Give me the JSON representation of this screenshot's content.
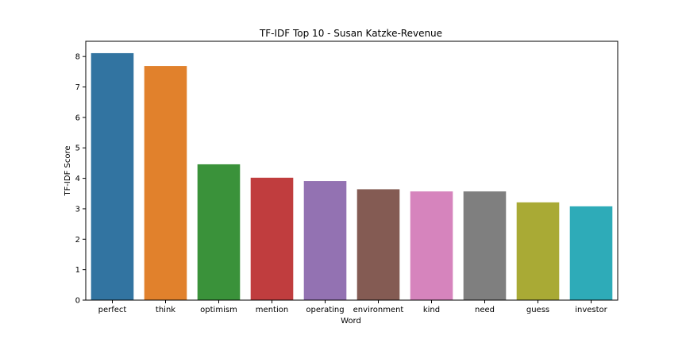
{
  "chart_data": {
    "type": "bar",
    "title": "TF-IDF Top 10 - Susan Katzke-Revenue",
    "xlabel": "Word",
    "ylabel": "TF-IDF Score",
    "categories": [
      "perfect",
      "think",
      "optimism",
      "mention",
      "operating",
      "environment",
      "kind",
      "need",
      "guess",
      "investor"
    ],
    "values": [
      8.11,
      7.69,
      4.46,
      4.02,
      3.91,
      3.64,
      3.57,
      3.57,
      3.21,
      3.08
    ],
    "colors": [
      "#3274a1",
      "#e1812c",
      "#3a923a",
      "#c03d3e",
      "#9372b2",
      "#845b53",
      "#d684bd",
      "#7f7f7f",
      "#a9aa35",
      "#2eabb8"
    ],
    "yticks": [
      "0",
      "1",
      "2",
      "3",
      "4",
      "5",
      "6",
      "7",
      "8"
    ],
    "ylim": [
      0,
      8.5
    ],
    "grid": false
  }
}
